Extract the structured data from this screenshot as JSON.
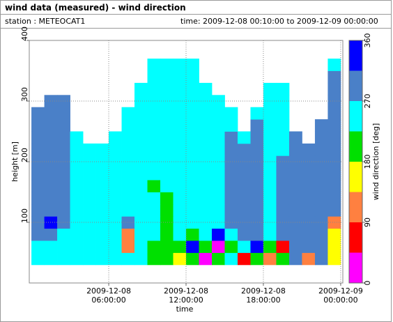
{
  "chart_data": {
    "type": "heatmap",
    "title": "wind data (measured) - wind direction",
    "station": "station : METEOCAT1",
    "period": "time: 2009-12-08 00:10:00 to 2009-12-09 00:00:00",
    "x_label": "time",
    "y_label": "height [m]",
    "colorbar_label": "wind direction [deg]",
    "xlim": [
      "2009-12-07 23:50:00",
      "2009-12-09 00:10:00"
    ],
    "xticks": [
      {
        "value": "2009-12-08 06:00:00",
        "label": "2009-12-08\n06:00:00"
      },
      {
        "value": "2009-12-08 12:00:00",
        "label": "2009-12-08\n12:00:00"
      },
      {
        "value": "2009-12-08 18:00:00",
        "label": "2009-12-08\n18:00:00"
      },
      {
        "value": "2009-12-09 00:00:00",
        "label": "2009-12-09\n00:00:00"
      }
    ],
    "ylim": [
      0,
      400
    ],
    "yticks": [
      100,
      200,
      300,
      400
    ],
    "grid": true,
    "x": [
      "2009-12-08 00:30:00",
      "2009-12-08 01:30:00",
      "2009-12-08 02:30:00",
      "2009-12-08 03:30:00",
      "2009-12-08 04:30:00",
      "2009-12-08 05:30:00",
      "2009-12-08 06:30:00",
      "2009-12-08 07:30:00",
      "2009-12-08 08:30:00",
      "2009-12-08 09:30:00",
      "2009-12-08 10:30:00",
      "2009-12-08 11:30:00",
      "2009-12-08 12:30:00",
      "2009-12-08 13:30:00",
      "2009-12-08 14:30:00",
      "2009-12-08 15:30:00",
      "2009-12-08 16:30:00",
      "2009-12-08 17:30:00",
      "2009-12-08 18:30:00",
      "2009-12-08 19:30:00",
      "2009-12-08 20:30:00",
      "2009-12-08 21:30:00",
      "2009-12-08 22:30:00",
      "2009-12-08 23:30:00"
    ],
    "y": [
      40,
      60,
      80,
      100,
      120,
      140,
      160,
      180,
      200,
      220,
      240,
      260,
      280,
      300,
      320,
      340,
      360
    ],
    "z": [
      [
        250,
        250,
        250,
        250,
        250,
        250,
        250,
        250,
        250,
        200,
        200,
        160,
        200,
        20,
        200,
        250,
        70,
        200,
        110,
        200,
        290,
        110,
        290,
        160
      ],
      [
        250,
        250,
        250,
        250,
        250,
        250,
        250,
        110,
        250,
        200,
        200,
        200,
        330,
        200,
        20,
        200,
        250,
        330,
        200,
        70,
        290,
        290,
        290,
        160
      ],
      [
        290,
        290,
        250,
        250,
        250,
        250,
        250,
        110,
        250,
        250,
        200,
        250,
        200,
        250,
        330,
        250,
        290,
        290,
        250,
        290,
        290,
        290,
        290,
        160
      ],
      [
        290,
        330,
        290,
        250,
        250,
        250,
        250,
        290,
        250,
        250,
        200,
        250,
        250,
        250,
        250,
        290,
        290,
        290,
        250,
        290,
        290,
        290,
        290,
        110
      ],
      [
        290,
        290,
        290,
        250,
        250,
        250,
        250,
        250,
        250,
        250,
        200,
        250,
        250,
        250,
        250,
        290,
        290,
        290,
        250,
        290,
        290,
        290,
        290,
        290
      ],
      [
        290,
        290,
        290,
        250,
        250,
        250,
        250,
        250,
        250,
        250,
        200,
        250,
        250,
        250,
        250,
        290,
        290,
        290,
        250,
        290,
        290,
        290,
        290,
        290
      ],
      [
        290,
        290,
        290,
        250,
        250,
        250,
        250,
        250,
        250,
        200,
        250,
        250,
        250,
        250,
        250,
        290,
        290,
        290,
        250,
        290,
        290,
        290,
        290,
        290
      ],
      [
        290,
        290,
        290,
        250,
        250,
        250,
        250,
        250,
        250,
        250,
        250,
        250,
        250,
        250,
        250,
        290,
        290,
        290,
        250,
        290,
        290,
        290,
        290,
        290
      ],
      [
        290,
        290,
        290,
        250,
        250,
        250,
        250,
        250,
        250,
        250,
        250,
        250,
        250,
        250,
        250,
        290,
        290,
        290,
        250,
        290,
        290,
        290,
        290,
        290
      ],
      [
        290,
        290,
        290,
        250,
        250,
        250,
        250,
        250,
        250,
        250,
        250,
        250,
        250,
        250,
        250,
        290,
        290,
        290,
        250,
        250,
        290,
        290,
        290,
        290
      ],
      [
        290,
        290,
        290,
        250,
        null,
        null,
        250,
        250,
        250,
        250,
        250,
        250,
        250,
        250,
        250,
        290,
        250,
        290,
        250,
        250,
        290,
        null,
        290,
        290
      ],
      [
        290,
        290,
        290,
        null,
        null,
        null,
        null,
        250,
        250,
        250,
        250,
        250,
        250,
        250,
        250,
        250,
        null,
        290,
        250,
        250,
        null,
        null,
        290,
        290
      ],
      [
        290,
        290,
        290,
        null,
        null,
        null,
        null,
        250,
        250,
        250,
        250,
        250,
        250,
        250,
        250,
        250,
        null,
        250,
        250,
        250,
        null,
        null,
        null,
        290
      ],
      [
        null,
        290,
        290,
        null,
        null,
        null,
        null,
        null,
        250,
        250,
        250,
        250,
        250,
        250,
        250,
        null,
        null,
        null,
        250,
        250,
        null,
        null,
        null,
        290
      ],
      [
        null,
        null,
        null,
        null,
        null,
        null,
        null,
        null,
        250,
        250,
        250,
        250,
        250,
        250,
        null,
        null,
        null,
        null,
        250,
        250,
        null,
        null,
        null,
        290
      ],
      [
        null,
        null,
        null,
        null,
        null,
        null,
        null,
        null,
        null,
        250,
        250,
        250,
        250,
        null,
        null,
        null,
        null,
        null,
        null,
        null,
        null,
        null,
        null,
        290
      ],
      [
        null,
        null,
        null,
        null,
        null,
        null,
        null,
        null,
        null,
        250,
        250,
        250,
        250,
        null,
        null,
        null,
        null,
        null,
        null,
        null,
        null,
        null,
        null,
        250
      ]
    ],
    "colorbar": {
      "bounds": [
        0,
        45,
        90,
        135,
        180,
        225,
        270,
        315,
        360
      ],
      "colors": [
        "#ff00ff",
        "#ff0000",
        "#ff8040",
        "#ffff00",
        "#00e000",
        "#00ffff",
        "#4a80c8",
        "#0000ff"
      ],
      "ticks": [
        0,
        90,
        180,
        270,
        360
      ]
    }
  }
}
